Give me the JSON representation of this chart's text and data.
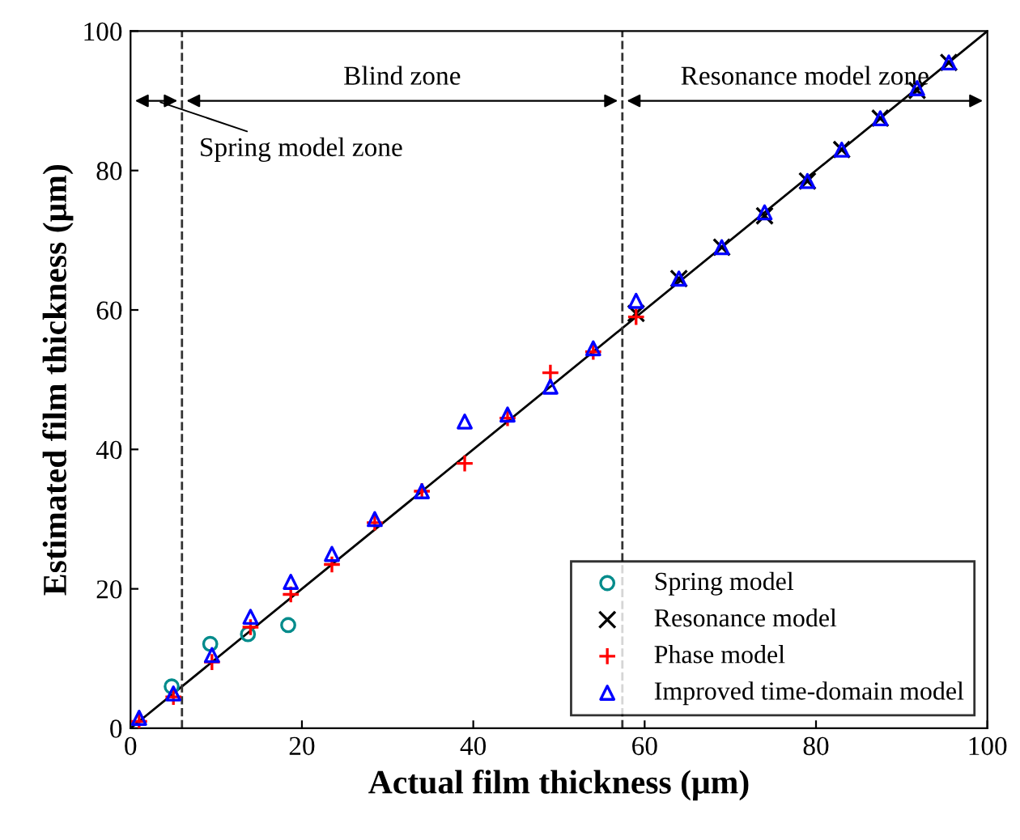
{
  "chart_data": {
    "type": "scatter",
    "xlabel": "Actual film thickness (μm)",
    "ylabel": "Estimated film thickness (μm)",
    "xlim": [
      0,
      100
    ],
    "ylim": [
      0,
      100
    ],
    "xticks": [
      0,
      20,
      40,
      60,
      80,
      100
    ],
    "yticks": [
      0,
      20,
      40,
      60,
      80,
      100
    ],
    "grid": false,
    "legend": "bottom right",
    "series": [
      {
        "type": "line",
        "color": "#000000",
        "marker": "none",
        "line_style": "solid",
        "x": [
          0,
          100
        ],
        "values": [
          0,
          100
        ]
      },
      {
        "name": "Spring model",
        "color": "#008b8b",
        "marker": "circle",
        "x": [
          4.8,
          9.3,
          13.7,
          18.4
        ],
        "values": [
          6.0,
          12.1,
          13.5,
          14.8
        ]
      },
      {
        "name": "Resonance model",
        "color": "#000000",
        "marker": "cross",
        "x": [
          59,
          64,
          69,
          74,
          79,
          83,
          87.5,
          91.8,
          95.5
        ],
        "values": [
          59.5,
          64.5,
          69,
          73.5,
          78.5,
          83,
          87.5,
          91.5,
          95.5
        ]
      },
      {
        "name": "Phase model",
        "color": "#ff0000",
        "marker": "plus",
        "x": [
          1,
          5,
          9.5,
          14,
          18.7,
          23.5,
          28.5,
          34,
          39,
          44,
          49,
          54,
          59
        ],
        "values": [
          1,
          4.5,
          9.5,
          14.5,
          19.2,
          23.5,
          29.5,
          34,
          38,
          44.5,
          51,
          54,
          59
        ]
      },
      {
        "name": "Improved time-domain model",
        "color": "#0000ff",
        "marker": "triangle",
        "x": [
          1,
          5,
          9.5,
          14,
          18.7,
          23.5,
          28.5,
          34,
          39,
          44,
          49,
          54,
          59,
          64,
          69,
          74,
          79,
          83,
          87.5,
          91.8,
          95.5
        ],
        "values": [
          1.5,
          5,
          10.5,
          16,
          21,
          25,
          30,
          34,
          44,
          45,
          49,
          54.5,
          61.3,
          64.5,
          69,
          74,
          78.5,
          83,
          87.5,
          91.8,
          95.5
        ]
      }
    ],
    "ref_lines": [
      {
        "axis": "x",
        "value": 6,
        "line_style": "dashed",
        "color": "#333333"
      },
      {
        "axis": "x",
        "value": 57.4,
        "line_style": "dashed",
        "color": "#333333"
      }
    ],
    "annotations": [
      "Spring model zone",
      "Blind zone",
      "Resonance model zone"
    ]
  }
}
